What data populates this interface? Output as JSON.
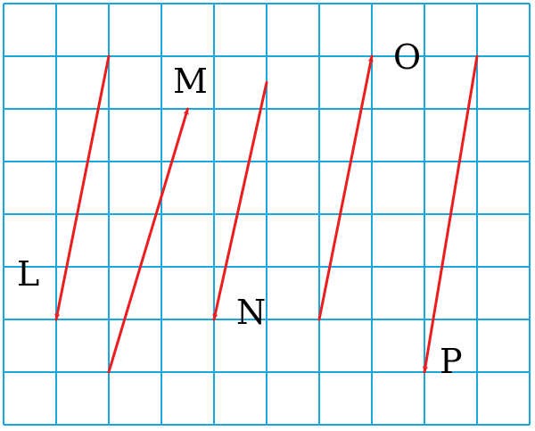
{
  "grid": {
    "cols": 10,
    "rows": 8,
    "line_color": "#1aa7e0"
  },
  "vector_color": "#ee1c1c",
  "vectors": [
    {
      "label": "L",
      "from": [
        2,
        7
      ],
      "to": [
        1,
        2
      ]
    },
    {
      "label": "M",
      "from": [
        2,
        1
      ],
      "to": [
        3.5,
        6
      ]
    },
    {
      "label": "N",
      "from": [
        5,
        6.5
      ],
      "to": [
        4,
        2
      ]
    },
    {
      "label": "O",
      "from": [
        6,
        2
      ],
      "to": [
        7,
        7
      ]
    },
    {
      "label": "P",
      "from": [
        9,
        7
      ],
      "to": [
        8,
        1
      ]
    }
  ]
}
